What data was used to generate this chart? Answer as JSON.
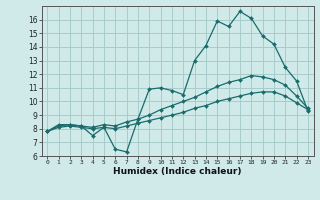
{
  "xlabel": "Humidex (Indice chaleur)",
  "background_color": "#d0eaea",
  "grid_color": "#a8cccc",
  "line_color": "#1a6b6b",
  "xlim": [
    -0.5,
    23.5
  ],
  "ylim": [
    6,
    17
  ],
  "yticks": [
    6,
    7,
    8,
    9,
    10,
    11,
    12,
    13,
    14,
    15,
    16
  ],
  "xticks": [
    0,
    1,
    2,
    3,
    4,
    5,
    6,
    7,
    8,
    9,
    10,
    11,
    12,
    13,
    14,
    15,
    16,
    17,
    18,
    19,
    20,
    21,
    22,
    23
  ],
  "line1_x": [
    0,
    1,
    2,
    3,
    4,
    5,
    6,
    7,
    8,
    9,
    10,
    11,
    12,
    13,
    14,
    15,
    16,
    17,
    18,
    19,
    20,
    21,
    22,
    23
  ],
  "line1_y": [
    7.8,
    8.3,
    8.3,
    8.2,
    7.5,
    8.1,
    6.5,
    6.3,
    8.7,
    10.9,
    11.0,
    10.8,
    10.5,
    13.0,
    14.1,
    15.9,
    15.5,
    16.6,
    16.1,
    14.8,
    14.2,
    12.5,
    11.5,
    9.3
  ],
  "line2_x": [
    0,
    1,
    2,
    3,
    4,
    5,
    6,
    7,
    8,
    9,
    10,
    11,
    12,
    13,
    14,
    15,
    16,
    17,
    18,
    19,
    20,
    21,
    22,
    23
  ],
  "line2_y": [
    7.8,
    8.2,
    8.3,
    8.2,
    8.1,
    8.3,
    8.2,
    8.5,
    8.7,
    9.0,
    9.4,
    9.7,
    10.0,
    10.3,
    10.7,
    11.1,
    11.4,
    11.6,
    11.9,
    11.8,
    11.6,
    11.2,
    10.4,
    9.5
  ],
  "line3_x": [
    0,
    1,
    2,
    3,
    4,
    5,
    6,
    7,
    8,
    9,
    10,
    11,
    12,
    13,
    14,
    15,
    16,
    17,
    18,
    19,
    20,
    21,
    22,
    23
  ],
  "line3_y": [
    7.8,
    8.1,
    8.2,
    8.1,
    8.0,
    8.1,
    8.0,
    8.2,
    8.4,
    8.6,
    8.8,
    9.0,
    9.2,
    9.5,
    9.7,
    10.0,
    10.2,
    10.4,
    10.6,
    10.7,
    10.7,
    10.4,
    9.9,
    9.4
  ]
}
